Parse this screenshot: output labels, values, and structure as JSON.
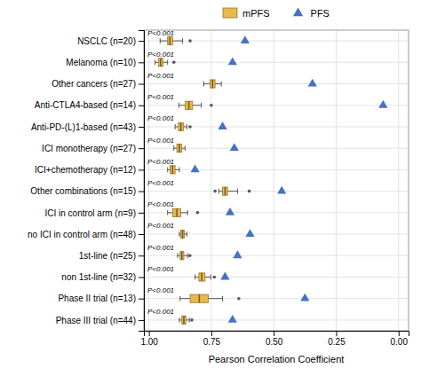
{
  "chart_data": {
    "type": "box",
    "orientation": "horizontal",
    "xlabel": "Pearson Correlation Coefficient",
    "categories": [
      "NSCLC (n=20)",
      "Melanoma (n=10)",
      "Other cancers (n=27)",
      "Anti-CTLA4-based (n=14)",
      "Anti-PD-(L)1-based (n=43)",
      "ICI monotherapy (n=27)",
      "ICI+chemotherapy (n=12)",
      "Other combinations (n=15)",
      "ICI in control arm (n=9)",
      "no ICI in control arm (n=48)",
      "1st-line (n=25)",
      "non 1st-line (n=32)",
      "Phase II trial (n=13)",
      "Phase III trial (n=44)"
    ],
    "series": [
      {
        "name": "mPFS",
        "type": "box",
        "color": "#E8B84B",
        "whisker_low": [
          0.955,
          0.975,
          0.78,
          0.88,
          0.895,
          0.9,
          0.925,
          0.72,
          0.925,
          0.878,
          0.885,
          0.815,
          0.875,
          0.878
        ],
        "q1": [
          0.925,
          0.962,
          0.755,
          0.855,
          0.882,
          0.888,
          0.915,
          0.705,
          0.905,
          0.872,
          0.875,
          0.8,
          0.835,
          0.868
        ],
        "median": [
          0.916,
          0.953,
          0.745,
          0.84,
          0.872,
          0.878,
          0.905,
          0.695,
          0.888,
          0.865,
          0.868,
          0.788,
          0.798,
          0.86
        ],
        "q3": [
          0.905,
          0.944,
          0.735,
          0.825,
          0.862,
          0.868,
          0.895,
          0.685,
          0.872,
          0.858,
          0.86,
          0.775,
          0.762,
          0.852
        ],
        "whisker_high": [
          0.865,
          0.925,
          0.71,
          0.79,
          0.848,
          0.855,
          0.878,
          0.645,
          0.845,
          0.848,
          0.845,
          0.752,
          0.705,
          0.838
        ],
        "flier_low": [
          null,
          null,
          null,
          null,
          null,
          null,
          null,
          0.735,
          null,
          null,
          0.836,
          null,
          null,
          0.828
        ],
        "flier_high": [
          0.835,
          0.9,
          null,
          0.75,
          0.835,
          null,
          null,
          0.598,
          0.805,
          null,
          null,
          0.738,
          0.64,
          null
        ]
      },
      {
        "name": "PFS",
        "type": "scatter",
        "marker": "triangle",
        "color": "#4472C4",
        "values": [
          0.615,
          0.665,
          0.345,
          0.062,
          0.705,
          0.658,
          0.815,
          0.468,
          0.675,
          0.595,
          0.645,
          0.695,
          0.375,
          0.665
        ]
      }
    ],
    "annotations": [
      "P<0.001",
      "P<0.001",
      "P<0.001",
      "P<0.001",
      "P<0.001",
      "P<0.001",
      "P<0.001",
      "P<0.001",
      "P<0.001",
      "P<0.001",
      "P<0.001",
      "P<0.001",
      "P<0.001",
      "P<0.001"
    ],
    "xlim": [
      1.02,
      -0.04
    ],
    "xticks": [
      {
        "value": 1.0,
        "label": "1.00"
      },
      0.75,
      {
        "value": 0.5,
        "label": "0.50"
      },
      0.25,
      {
        "value": 0,
        "label": "0.00"
      }
    ],
    "grid": true,
    "legend": "top"
  }
}
